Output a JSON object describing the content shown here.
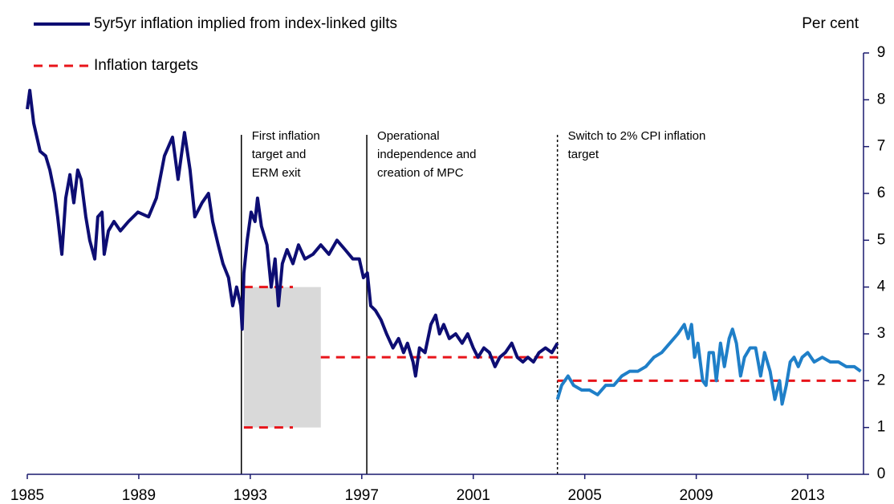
{
  "chart_data": {
    "type": "line",
    "y_label": "Per cent",
    "xlim": [
      1985,
      2015
    ],
    "xticks": [
      1985,
      1989,
      1993,
      1997,
      2001,
      2005,
      2009,
      2013
    ],
    "ylim": [
      0,
      9
    ],
    "yticks": [
      0,
      1,
      2,
      3,
      4,
      5,
      6,
      7,
      8,
      9
    ],
    "axis_color": "#1a1a6e",
    "series": [
      {
        "name": "5yr5yr inflation implied from index-linked gilts",
        "color": "#0d0d73",
        "x": [
          1985.0,
          1985.09,
          1985.23,
          1985.46,
          1985.66,
          1985.81,
          1985.98,
          1986.09,
          1986.24,
          1986.38,
          1986.53,
          1986.67,
          1986.81,
          1986.93,
          1987.1,
          1987.24,
          1987.42,
          1987.53,
          1987.68,
          1987.76,
          1987.91,
          1988.11,
          1988.34,
          1988.63,
          1988.97,
          1989.35,
          1989.63,
          1989.92,
          1990.21,
          1990.41,
          1990.64,
          1990.84,
          1991.01,
          1991.27,
          1991.5,
          1991.65,
          1991.85,
          1992.02,
          1992.22,
          1992.37,
          1992.51,
          1992.66,
          1992.71,
          1992.77,
          1992.89,
          1993.03,
          1993.17,
          1993.26,
          1993.4,
          1993.6,
          1993.75,
          1993.89,
          1994.01,
          1994.15,
          1994.32,
          1994.53,
          1994.73,
          1994.96,
          1995.25,
          1995.53,
          1995.82,
          1996.11,
          1996.4,
          1996.68,
          1996.91,
          1997.06,
          1997.2,
          1997.32,
          1997.49,
          1997.69,
          1997.89,
          1998.12,
          1998.32,
          1998.5,
          1998.64,
          1998.84,
          1998.93,
          1999.07,
          1999.27,
          1999.48,
          1999.65,
          1999.79,
          1999.94,
          2000.14,
          2000.37,
          2000.6,
          2000.8,
          2001.0,
          2001.17,
          2001.38,
          2001.58,
          2001.78,
          2001.95,
          2002.15,
          2002.38,
          2002.58,
          2002.78,
          2002.96,
          2003.16,
          2003.36,
          2003.59,
          2003.82,
          2004.02
        ],
        "values": [
          7.8,
          8.2,
          7.5,
          6.9,
          6.8,
          6.5,
          6.0,
          5.5,
          4.7,
          5.9,
          6.4,
          5.8,
          6.5,
          6.3,
          5.5,
          5.0,
          4.6,
          5.5,
          5.6,
          4.7,
          5.2,
          5.4,
          5.2,
          5.4,
          5.6,
          5.5,
          5.9,
          6.8,
          7.2,
          6.3,
          7.3,
          6.5,
          5.5,
          5.8,
          6.0,
          5.4,
          4.9,
          4.5,
          4.2,
          3.6,
          4.0,
          3.6,
          3.1,
          4.3,
          5.0,
          5.6,
          5.4,
          5.9,
          5.3,
          4.9,
          4.0,
          4.6,
          3.6,
          4.5,
          4.8,
          4.5,
          4.9,
          4.6,
          4.7,
          4.9,
          4.7,
          5.0,
          4.8,
          4.6,
          4.6,
          4.2,
          4.3,
          3.6,
          3.5,
          3.3,
          3.0,
          2.7,
          2.9,
          2.6,
          2.8,
          2.4,
          2.1,
          2.7,
          2.6,
          3.2,
          3.4,
          3.0,
          3.2,
          2.9,
          3.0,
          2.8,
          3.0,
          2.7,
          2.5,
          2.7,
          2.6,
          2.3,
          2.5,
          2.6,
          2.8,
          2.5,
          2.4,
          2.5,
          2.4,
          2.6,
          2.7,
          2.6,
          2.8
        ]
      },
      {
        "color": "#1f7fc8",
        "x": [
          2004.02,
          2004.17,
          2004.4,
          2004.6,
          2004.89,
          2005.17,
          2005.46,
          2005.75,
          2006.04,
          2006.33,
          2006.61,
          2006.9,
          2007.19,
          2007.48,
          2007.76,
          2008.05,
          2008.34,
          2008.57,
          2008.71,
          2008.83,
          2008.94,
          2009.06,
          2009.23,
          2009.35,
          2009.46,
          2009.61,
          2009.72,
          2009.87,
          2010.01,
          2010.18,
          2010.3,
          2010.44,
          2010.59,
          2010.73,
          2010.93,
          2011.13,
          2011.31,
          2011.45,
          2011.65,
          2011.82,
          2011.99,
          2012.08,
          2012.23,
          2012.37,
          2012.51,
          2012.66,
          2012.8,
          2013.0,
          2013.23,
          2013.52,
          2013.81,
          2014.1,
          2014.38,
          2014.67,
          2014.9
        ],
        "values": [
          1.6,
          1.9,
          2.1,
          1.9,
          1.8,
          1.8,
          1.7,
          1.9,
          1.9,
          2.1,
          2.2,
          2.2,
          2.3,
          2.5,
          2.6,
          2.8,
          3.0,
          3.2,
          2.9,
          3.2,
          2.5,
          2.8,
          2.0,
          1.9,
          2.6,
          2.6,
          2.0,
          2.8,
          2.3,
          2.9,
          3.1,
          2.8,
          2.1,
          2.5,
          2.7,
          2.7,
          2.1,
          2.6,
          2.2,
          1.6,
          2.0,
          1.5,
          1.9,
          2.4,
          2.5,
          2.3,
          2.5,
          2.6,
          2.4,
          2.5,
          2.4,
          2.4,
          2.3,
          2.3,
          2.2
        ]
      }
    ],
    "targets": {
      "name": "Inflation targets",
      "color": "#e8141a",
      "segments": [
        {
          "x": [
            1992.77,
            1994.53
          ],
          "value": 4
        },
        {
          "x": [
            1992.77,
            1994.53
          ],
          "value": 1
        },
        {
          "x": [
            1995.53,
            2004.02
          ],
          "value": 2.5
        },
        {
          "x": [
            2004.02,
            2014.9
          ],
          "value": 2
        }
      ]
    },
    "band": {
      "x": [
        1992.77,
        1995.53
      ],
      "y": [
        1,
        4
      ],
      "color": "#d9d9d9"
    },
    "events": [
      {
        "x": 1992.68,
        "style": "solid",
        "label": [
          "First inflation",
          "target and",
          "ERM exit"
        ]
      },
      {
        "x": 1997.18,
        "style": "solid",
        "label": [
          "Operational",
          "independence and",
          "creation of MPC"
        ]
      },
      {
        "x": 2004.02,
        "style": "dashed",
        "label": [
          "Switch to 2% CPI inflation",
          "target"
        ]
      }
    ]
  }
}
